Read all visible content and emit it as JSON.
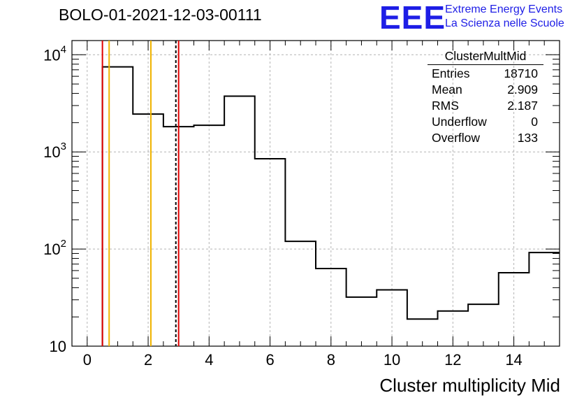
{
  "header": {
    "title": "BOLO-01-2021-12-03-00111",
    "logo_letters": "EEE",
    "logo_line1": "Extreme Energy Events",
    "logo_line2": "La Scienza nelle Scuole"
  },
  "stats": {
    "name": "ClusterMultMid",
    "rows": [
      {
        "label": "Entries",
        "value": "18710"
      },
      {
        "label": "Mean",
        "value": "2.909"
      },
      {
        "label": "RMS",
        "value": "2.187"
      },
      {
        "label": "Underflow",
        "value": "0"
      },
      {
        "label": "Overflow",
        "value": "133"
      }
    ]
  },
  "colors": {
    "histogram": "#000000",
    "red_line": "#e00000",
    "orange_line": "#f0b400",
    "mean_line": "#000000"
  },
  "chart_data": {
    "type": "bar",
    "style": "step-histogram",
    "title": "BOLO-01-2021-12-03-00111",
    "xlabel": "Cluster multiplicity Mid",
    "ylabel": "",
    "xlim": [
      -0.5,
      15.5
    ],
    "ylim": [
      10,
      14000
    ],
    "yscale": "log",
    "grid": true,
    "bins": [
      {
        "lo": 0.5,
        "hi": 1.5,
        "value": 7500
      },
      {
        "lo": 1.5,
        "hi": 2.5,
        "value": 2450
      },
      {
        "lo": 2.5,
        "hi": 3.5,
        "value": 1820
      },
      {
        "lo": 3.5,
        "hi": 4.5,
        "value": 1880
      },
      {
        "lo": 4.5,
        "hi": 5.5,
        "value": 3750
      },
      {
        "lo": 5.5,
        "hi": 6.5,
        "value": 850
      },
      {
        "lo": 6.5,
        "hi": 7.5,
        "value": 120
      },
      {
        "lo": 7.5,
        "hi": 8.5,
        "value": 63
      },
      {
        "lo": 8.5,
        "hi": 9.5,
        "value": 32
      },
      {
        "lo": 9.5,
        "hi": 10.5,
        "value": 38
      },
      {
        "lo": 10.5,
        "hi": 11.5,
        "value": 19
      },
      {
        "lo": 11.5,
        "hi": 12.5,
        "value": 23
      },
      {
        "lo": 12.5,
        "hi": 13.5,
        "value": 27
      },
      {
        "lo": 13.5,
        "hi": 14.5,
        "value": 57
      },
      {
        "lo": 14.5,
        "hi": 15.5,
        "value": 92
      }
    ],
    "x_ticks": [
      "0",
      "2",
      "4",
      "6",
      "8",
      "10",
      "12",
      "14"
    ],
    "y_ticks": [
      {
        "value": 10,
        "base": "10",
        "exp": ""
      },
      {
        "value": 100,
        "base": "10",
        "exp": "2"
      },
      {
        "value": 1000,
        "base": "10",
        "exp": "3"
      },
      {
        "value": 10000,
        "base": "10",
        "exp": "4"
      }
    ],
    "vertical_lines": [
      {
        "x": 0.5,
        "color": "red",
        "style": "solid"
      },
      {
        "x": 0.72,
        "color": "orange",
        "style": "solid"
      },
      {
        "x": 2.09,
        "color": "orange",
        "style": "solid"
      },
      {
        "x": 2.909,
        "color": "black",
        "style": "dashed"
      },
      {
        "x": 3.0,
        "color": "red",
        "style": "solid"
      }
    ]
  }
}
